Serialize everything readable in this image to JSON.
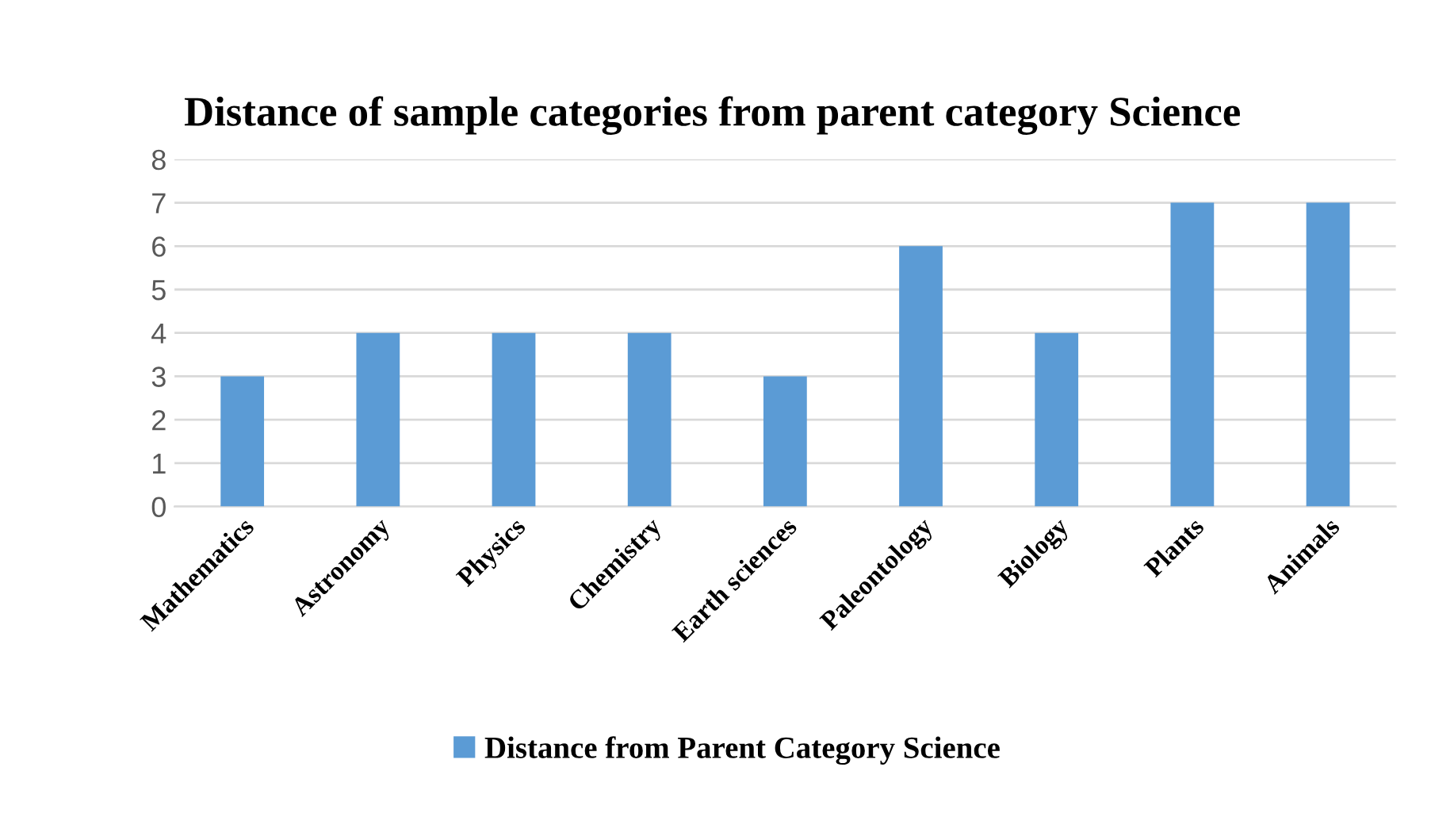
{
  "chart_data": {
    "type": "bar",
    "title": "Distance of sample categories from parent category Science",
    "categories": [
      "Mathematics",
      "Astronomy",
      "Physics",
      "Chemistry",
      "Earth sciences",
      "Paleontology",
      "Biology",
      "Plants",
      "Animals"
    ],
    "series": [
      {
        "name": "Distance from Parent Category Science",
        "color": "#5b9bd5",
        "values": [
          3,
          4,
          4,
          4,
          3,
          6,
          4,
          7,
          7
        ]
      }
    ],
    "ylim": [
      0,
      8
    ],
    "yticks": [
      0,
      1,
      2,
      3,
      4,
      5,
      6,
      7,
      8
    ],
    "grid": "y",
    "legend": "bottom"
  }
}
